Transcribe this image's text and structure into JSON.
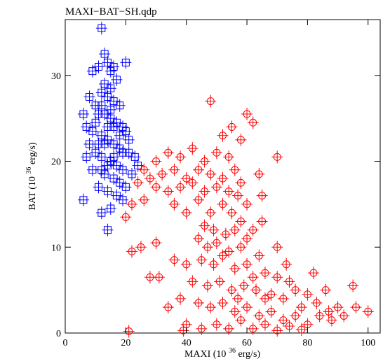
{
  "chart_data": {
    "type": "scatter",
    "title": "MAXI−BAT−SH.qdp",
    "xlabel": "MAXI (10",
    "xlabel_exp": "36",
    "xlabel_unit": " erg/s)",
    "ylabel": "BAT (10",
    "ylabel_exp": "36",
    "ylabel_unit": " erg/s)",
    "xlim": [
      0,
      104
    ],
    "ylim": [
      0,
      36.5
    ],
    "xticks": [
      0,
      20,
      40,
      60,
      80,
      100
    ],
    "yticks": [
      0,
      10,
      20,
      30
    ],
    "grid": false,
    "series": [
      {
        "color": "#0000ff",
        "marker": "square",
        "points": [
          [
            12,
            35.5
          ],
          [
            13,
            32.5
          ],
          [
            14,
            31.5
          ],
          [
            15,
            30.5
          ],
          [
            11,
            31
          ],
          [
            16,
            31
          ],
          [
            20,
            31.5
          ],
          [
            9,
            30.5
          ],
          [
            17,
            29.5
          ],
          [
            13,
            29
          ],
          [
            15,
            28.5
          ],
          [
            12,
            28
          ],
          [
            14,
            27.5
          ],
          [
            16,
            27
          ],
          [
            18,
            26.5
          ],
          [
            8,
            27.5
          ],
          [
            10,
            26.5
          ],
          [
            11,
            25.5
          ],
          [
            13,
            25.5
          ],
          [
            15,
            25
          ],
          [
            17,
            24.5
          ],
          [
            19,
            24
          ],
          [
            20,
            23.5
          ],
          [
            6,
            25.5
          ],
          [
            7,
            24
          ],
          [
            9,
            23.5
          ],
          [
            12,
            23
          ],
          [
            14,
            22.5
          ],
          [
            16,
            22
          ],
          [
            18,
            21.5
          ],
          [
            21,
            21
          ],
          [
            23,
            20.5
          ],
          [
            8,
            22
          ],
          [
            10,
            21
          ],
          [
            12,
            20.5
          ],
          [
            15,
            20
          ],
          [
            17,
            19.5
          ],
          [
            19,
            19
          ],
          [
            22,
            18.5
          ],
          [
            24,
            19.5
          ],
          [
            7,
            20.5
          ],
          [
            9,
            19
          ],
          [
            13,
            18.5
          ],
          [
            16,
            18
          ],
          [
            18,
            17.5
          ],
          [
            20,
            17
          ],
          [
            11,
            17
          ],
          [
            14,
            16.5
          ],
          [
            17,
            16
          ],
          [
            19,
            15.5
          ],
          [
            6,
            15.5
          ],
          [
            14,
            12
          ],
          [
            12,
            14
          ],
          [
            15,
            14.5
          ],
          [
            13,
            22
          ],
          [
            15,
            26
          ],
          [
            14,
            24
          ],
          [
            16,
            24
          ],
          [
            12,
            26.5
          ],
          [
            18,
            23
          ],
          [
            11,
            22
          ],
          [
            19,
            21
          ],
          [
            21,
            22.5
          ],
          [
            10,
            24.5
          ],
          [
            14,
            19.5
          ],
          [
            16,
            20.5
          ],
          [
            12,
            19
          ]
        ]
      },
      {
        "color": "#ff0000",
        "marker": "circle",
        "points": [
          [
            48,
            27
          ],
          [
            60,
            25.5
          ],
          [
            55,
            24
          ],
          [
            52,
            23
          ],
          [
            58,
            22.5
          ],
          [
            62,
            24.5
          ],
          [
            70,
            20.5
          ],
          [
            30,
            20
          ],
          [
            34,
            21
          ],
          [
            38,
            20.5
          ],
          [
            42,
            21.5
          ],
          [
            46,
            20
          ],
          [
            50,
            21
          ],
          [
            54,
            20.5
          ],
          [
            26,
            19
          ],
          [
            28,
            18
          ],
          [
            32,
            18.5
          ],
          [
            36,
            19
          ],
          [
            40,
            18
          ],
          [
            44,
            19
          ],
          [
            48,
            18.5
          ],
          [
            52,
            18
          ],
          [
            56,
            19
          ],
          [
            58,
            17.5
          ],
          [
            24,
            17.5
          ],
          [
            30,
            17
          ],
          [
            34,
            16.5
          ],
          [
            38,
            17
          ],
          [
            42,
            17.5
          ],
          [
            46,
            16.5
          ],
          [
            50,
            17
          ],
          [
            54,
            16.5
          ],
          [
            57,
            16
          ],
          [
            60,
            15
          ],
          [
            65,
            16
          ],
          [
            22,
            15
          ],
          [
            20,
            13.5
          ],
          [
            26,
            15.5
          ],
          [
            36,
            15
          ],
          [
            44,
            15.5
          ],
          [
            48,
            14
          ],
          [
            52,
            15
          ],
          [
            55,
            14
          ],
          [
            58,
            13
          ],
          [
            62,
            12
          ],
          [
            40,
            14
          ],
          [
            46,
            12.5
          ],
          [
            49,
            12
          ],
          [
            53,
            11.5
          ],
          [
            56,
            12
          ],
          [
            60,
            11
          ],
          [
            44,
            11
          ],
          [
            47,
            10
          ],
          [
            50,
            10.5
          ],
          [
            54,
            9.5
          ],
          [
            58,
            10
          ],
          [
            64,
            9
          ],
          [
            30,
            10.5
          ],
          [
            25,
            10
          ],
          [
            22,
            9.5
          ],
          [
            36,
            8.5
          ],
          [
            40,
            8
          ],
          [
            45,
            8.5
          ],
          [
            49,
            8
          ],
          [
            52,
            9
          ],
          [
            56,
            7.5
          ],
          [
            60,
            8
          ],
          [
            66,
            7
          ],
          [
            70,
            6.5
          ],
          [
            74,
            6
          ],
          [
            28,
            6.5
          ],
          [
            42,
            6
          ],
          [
            47,
            5.5
          ],
          [
            51,
            6
          ],
          [
            55,
            5
          ],
          [
            59,
            5.5
          ],
          [
            63,
            5
          ],
          [
            68,
            4.5
          ],
          [
            72,
            4
          ],
          [
            76,
            5
          ],
          [
            80,
            4.5
          ],
          [
            82,
            7
          ],
          [
            86,
            5
          ],
          [
            90,
            3
          ],
          [
            95,
            5.5
          ],
          [
            100,
            2.5
          ],
          [
            38,
            4
          ],
          [
            44,
            3.5
          ],
          [
            48,
            3
          ],
          [
            52,
            3.5
          ],
          [
            56,
            2.5
          ],
          [
            60,
            3
          ],
          [
            64,
            2
          ],
          [
            68,
            2.5
          ],
          [
            72,
            1.5
          ],
          [
            76,
            2
          ],
          [
            80,
            1
          ],
          [
            84,
            2
          ],
          [
            88,
            1.5
          ],
          [
            92,
            2
          ],
          [
            96,
            3
          ],
          [
            40,
            1
          ],
          [
            45,
            0.5
          ],
          [
            50,
            1
          ],
          [
            54,
            0.5
          ],
          [
            58,
            1.5
          ],
          [
            62,
            0.5
          ],
          [
            66,
            1
          ],
          [
            70,
            0.3
          ],
          [
            74,
            0.8
          ],
          [
            78,
            0.4
          ],
          [
            21,
            0.2
          ],
          [
            39,
            0.3
          ],
          [
            34,
            3
          ],
          [
            31,
            6.5
          ],
          [
            57,
            4
          ],
          [
            62,
            6.5
          ],
          [
            66,
            4
          ],
          [
            73,
            8
          ],
          [
            78,
            3
          ],
          [
            83,
            3.5
          ],
          [
            87,
            2.5
          ],
          [
            70,
            10
          ],
          [
            65,
            13
          ],
          [
            64,
            18.5
          ]
        ]
      }
    ]
  }
}
